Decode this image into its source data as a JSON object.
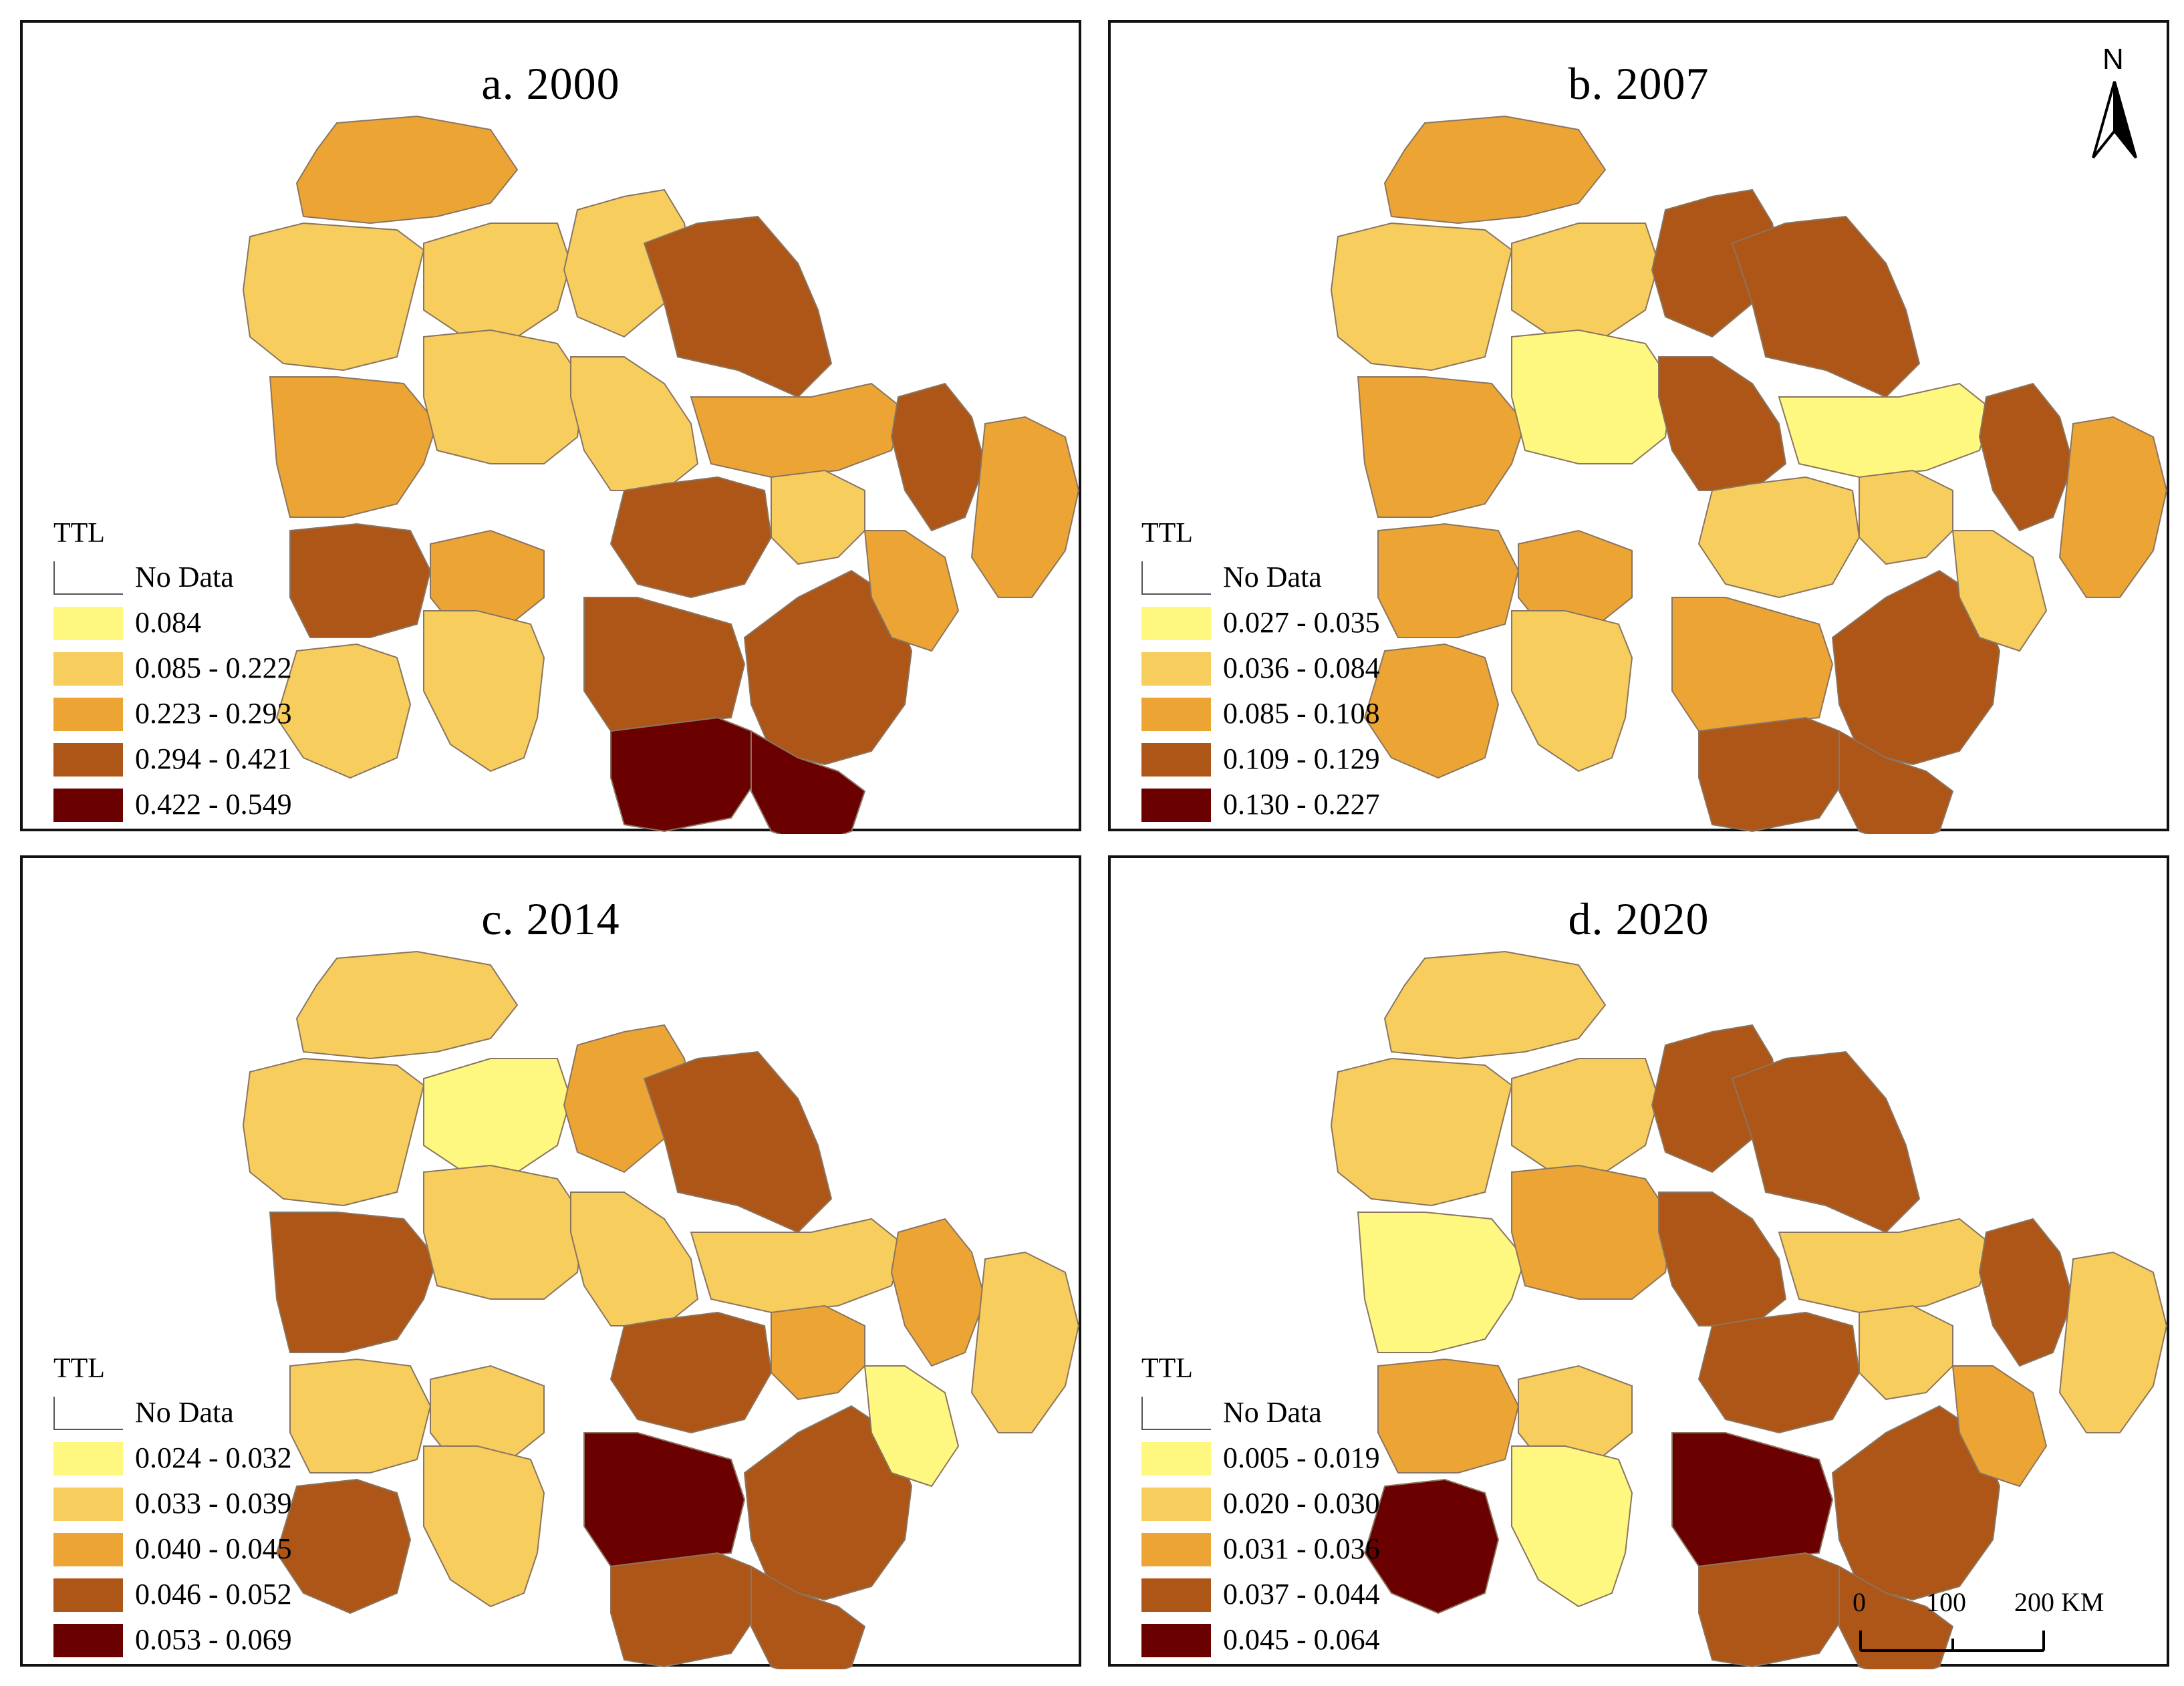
{
  "figure": {
    "panels": [
      {
        "id": "a",
        "title": "a. 2000",
        "legend": {
          "title": "TTL",
          "items": [
            {
              "label": "No Data",
              "color": "#ffffff"
            },
            {
              "label": "0.084",
              "color": "#fff880"
            },
            {
              "label": "0.085 - 0.222",
              "color": "#f7cd5e"
            },
            {
              "label": "0.223 - 0.293",
              "color": "#eca535"
            },
            {
              "label": "0.294 - 0.421",
              "color": "#ad5617"
            },
            {
              "label": "0.422 - 0.549",
              "color": "#6b0000"
            }
          ]
        }
      },
      {
        "id": "b",
        "title": "b. 2007",
        "legend": {
          "title": "TTL",
          "items": [
            {
              "label": "No Data",
              "color": "#ffffff"
            },
            {
              "label": "0.027 - 0.035",
              "color": "#fff880"
            },
            {
              "label": "0.036 - 0.084",
              "color": "#f7cd5e"
            },
            {
              "label": "0.085 - 0.108",
              "color": "#eca535"
            },
            {
              "label": "0.109 - 0.129",
              "color": "#ad5617"
            },
            {
              "label": "0.130 - 0.227",
              "color": "#6b0000"
            }
          ]
        }
      },
      {
        "id": "c",
        "title": "c. 2014",
        "legend": {
          "title": "TTL",
          "items": [
            {
              "label": "No Data",
              "color": "#ffffff"
            },
            {
              "label": "0.024 - 0.032",
              "color": "#fff880"
            },
            {
              "label": "0.033 - 0.039",
              "color": "#f7cd5e"
            },
            {
              "label": "0.040 - 0.045",
              "color": "#eca535"
            },
            {
              "label": "0.046 - 0.052",
              "color": "#ad5617"
            },
            {
              "label": "0.053 - 0.069",
              "color": "#6b0000"
            }
          ]
        }
      },
      {
        "id": "d",
        "title": "d. 2020",
        "legend": {
          "title": "TTL",
          "items": [
            {
              "label": "No Data",
              "color": "#ffffff"
            },
            {
              "label": "0.005 - 0.019",
              "color": "#fff880"
            },
            {
              "label": "0.020 - 0.030",
              "color": "#f7cd5e"
            },
            {
              "label": "0.031 - 0.036",
              "color": "#eca535"
            },
            {
              "label": "0.037 - 0.044",
              "color": "#ad5617"
            },
            {
              "label": "0.045 - 0.064",
              "color": "#6b0000"
            }
          ]
        }
      }
    ],
    "north_arrow": {
      "letter": "N"
    },
    "scale_bar": {
      "ticks": [
        "0",
        "100",
        "200 KM"
      ]
    }
  }
}
